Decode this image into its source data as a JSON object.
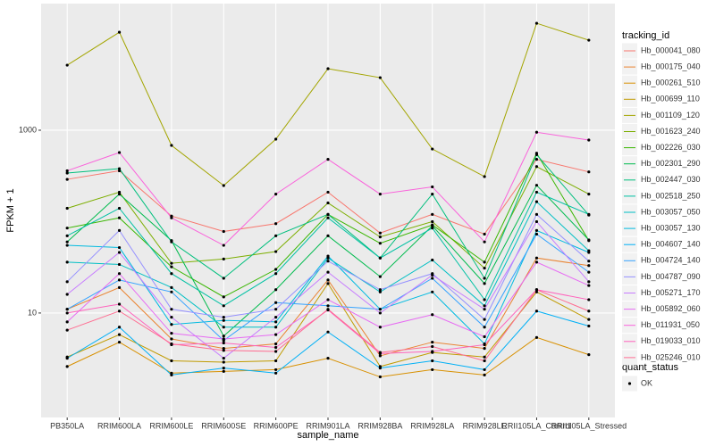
{
  "chart_data": {
    "type": "line",
    "x_label": "sample_name",
    "y_label": "FPKM + 1",
    "log_scale": true,
    "grid": true,
    "legend_title": "tracking_id",
    "shape_legend_title": "quant_status",
    "shape_legend_items": [
      "OK"
    ],
    "categories": [
      "PB350LA",
      "RRIM600LA",
      "RRIM600LE",
      "RRIM600SE",
      "RRIM600PE",
      "RRIM901LA",
      "RRIM928BA",
      "RRIM928LA",
      "RRIM928LE",
      "RRII105LA_Control",
      "RRII105LA_Stressed"
    ],
    "ylim": [
      0.72,
      24300
    ],
    "yticks": [
      10,
      1000
    ],
    "point_color": "#000000",
    "series": [
      {
        "name": "Hb_000041_080",
        "color": "#F8766D",
        "values": [
          290,
          360,
          115,
          78,
          95,
          210,
          75,
          120,
          73,
          480,
          350
        ]
      },
      {
        "name": "Hb_000175_040",
        "color": "#EA8331",
        "values": [
          11,
          19,
          5.2,
          4.1,
          4.6,
          23,
          3.4,
          4.8,
          4.1,
          40,
          33
        ]
      },
      {
        "name": "Hb_000261_510",
        "color": "#D89000",
        "values": [
          2.6,
          4.8,
          2.2,
          2.3,
          2.4,
          3.2,
          2.0,
          2.4,
          2.1,
          5.4,
          3.5
        ]
      },
      {
        "name": "Hb_000699_110",
        "color": "#C09B00",
        "values": [
          3.3,
          5.8,
          3.0,
          2.9,
          3.0,
          21,
          2.6,
          3.7,
          3.3,
          17,
          8.5
        ]
      },
      {
        "name": "Hb_001109_120",
        "color": "#A3A500",
        "values": [
          5150,
          11800,
          682,
          248,
          798,
          4710,
          3760,
          623,
          311,
          14800,
          9660
        ]
      },
      {
        "name": "Hb_001623_240",
        "color": "#7CAE00",
        "values": [
          140,
          210,
          35,
          39,
          47,
          160,
          68,
          100,
          31,
          400,
          200
        ]
      },
      {
        "name": "Hb_002226_030",
        "color": "#39B600",
        "values": [
          85,
          110,
          32,
          15,
          30,
          120,
          58,
          92,
          36,
          560,
          62
        ]
      },
      {
        "name": "Hb_002301_290",
        "color": "#00BB4E",
        "values": [
          60,
          200,
          62,
          5.6,
          18,
          70,
          25,
          90,
          21,
          250,
          63
        ]
      },
      {
        "name": "Hb_002447_030",
        "color": "#00BF7D",
        "values": [
          340,
          380,
          60,
          24,
          70,
          120,
          40,
          200,
          24,
          540,
          118
        ]
      },
      {
        "name": "Hb_002518_250",
        "color": "#00C1A3",
        "values": [
          70,
          140,
          27,
          12,
          27,
          110,
          40,
          85,
          14,
          210,
          120
        ]
      },
      {
        "name": "Hb_003057_050",
        "color": "#00BFC4",
        "values": [
          36,
          34,
          19,
          7,
          7,
          40,
          17,
          38,
          12,
          165,
          48
        ]
      },
      {
        "name": "Hb_003057_130",
        "color": "#00BAE0",
        "values": [
          55,
          52,
          7.5,
          8.3,
          8.0,
          42,
          11,
          17,
          4.6,
          80,
          46
        ]
      },
      {
        "name": "Hb_004607_140",
        "color": "#00B0F6",
        "values": [
          3.2,
          7,
          2.1,
          2.5,
          2.2,
          6.2,
          2.5,
          3,
          2.4,
          10.5,
          7.2
        ]
      },
      {
        "name": "Hb_004724_140",
        "color": "#35A2FF",
        "values": [
          11,
          23,
          17,
          5,
          13,
          12,
          11,
          24,
          7,
          73,
          28
        ]
      },
      {
        "name": "Hb_004787_090",
        "color": "#9590FF",
        "values": [
          22,
          80,
          11,
          9,
          11,
          37,
          18,
          27,
          8.5,
          120,
          37
        ]
      },
      {
        "name": "Hb_005271_170",
        "color": "#C77CFF",
        "values": [
          16,
          46,
          9,
          3.2,
          9,
          28,
          10,
          26,
          11,
          100,
          22
        ]
      },
      {
        "name": "Hb_005892_060",
        "color": "#E76BF3",
        "values": [
          8,
          27,
          6,
          5.2,
          5.8,
          14,
          7,
          9.6,
          5.5,
          36,
          20
        ]
      },
      {
        "name": "Hb_011931_050",
        "color": "#FA62DB",
        "values": [
          360,
          570,
          110,
          55,
          200,
          480,
          200,
          240,
          60,
          950,
          780
        ]
      },
      {
        "name": "Hb_019033_010",
        "color": "#FF62BC",
        "values": [
          10,
          12.5,
          4.5,
          4.7,
          4.2,
          10.8,
          3.6,
          3.8,
          4.5,
          18,
          14
        ]
      },
      {
        "name": "Hb_025246_010",
        "color": "#FF6C91",
        "values": [
          6.5,
          10.5,
          4.6,
          3.9,
          3.8,
          11,
          3.7,
          4.3,
          3.0,
          18,
          10.5
        ]
      }
    ]
  }
}
